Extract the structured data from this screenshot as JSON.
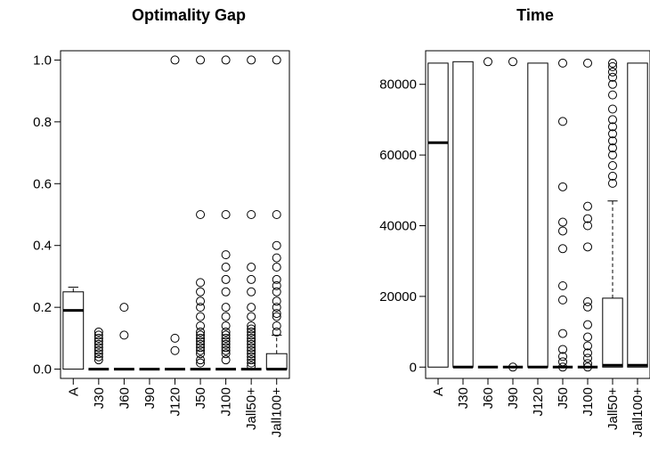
{
  "chart_data": [
    {
      "type": "boxplot",
      "title": "Optimality Gap",
      "xlabel": "",
      "ylabel": "",
      "categories": [
        "A",
        "J30",
        "J60",
        "J90",
        "J120",
        "J50",
        "J100",
        "Jall50+",
        "Jall100+"
      ],
      "ylim": [
        -0.03,
        1.03
      ],
      "yticks": [
        0.0,
        0.2,
        0.4,
        0.6,
        0.8,
        1.0
      ],
      "ytick_labels": [
        "0.0",
        "0.2",
        "0.4",
        "0.6",
        "0.8",
        "1.0"
      ],
      "boxes": [
        {
          "q1": 0,
          "median": 0.19,
          "q3": 0.25,
          "whisker_low": 0,
          "whisker_high": 0.265,
          "outliers": []
        },
        {
          "q1": 0,
          "median": 0,
          "q3": 0,
          "whisker_low": 0,
          "whisker_high": 0,
          "outliers": [
            0.03,
            0.04,
            0.05,
            0.06,
            0.07,
            0.08,
            0.09,
            0.1,
            0.11,
            0.12
          ]
        },
        {
          "q1": 0,
          "median": 0,
          "q3": 0,
          "whisker_low": 0,
          "whisker_high": 0,
          "outliers": [
            0.11,
            0.2
          ]
        },
        {
          "q1": 0,
          "median": 0,
          "q3": 0,
          "whisker_low": 0,
          "whisker_high": 0,
          "outliers": []
        },
        {
          "q1": 0,
          "median": 0,
          "q3": 0,
          "whisker_low": 0,
          "whisker_high": 0,
          "outliers": [
            0.06,
            0.1,
            1.0
          ]
        },
        {
          "q1": 0,
          "median": 0,
          "q3": 0,
          "whisker_low": 0,
          "whisker_high": 0,
          "outliers": [
            0.02,
            0.03,
            0.05,
            0.06,
            0.07,
            0.08,
            0.09,
            0.1,
            0.11,
            0.12,
            0.14,
            0.17,
            0.2,
            0.22,
            0.25,
            0.28,
            0.5,
            1.0
          ]
        },
        {
          "q1": 0,
          "median": 0,
          "q3": 0,
          "whisker_low": 0,
          "whisker_high": 0,
          "outliers": [
            0.03,
            0.05,
            0.06,
            0.07,
            0.08,
            0.09,
            0.1,
            0.11,
            0.12,
            0.14,
            0.17,
            0.2,
            0.25,
            0.29,
            0.33,
            0.37,
            0.5,
            1.0
          ]
        },
        {
          "q1": 0,
          "median": 0,
          "q3": 0,
          "whisker_low": 0,
          "whisker_high": 0,
          "outliers": [
            0.01,
            0.02,
            0.03,
            0.04,
            0.05,
            0.06,
            0.07,
            0.08,
            0.09,
            0.1,
            0.11,
            0.12,
            0.13,
            0.14,
            0.17,
            0.2,
            0.25,
            0.29,
            0.33,
            0.5,
            1.0
          ]
        },
        {
          "q1": 0,
          "median": 0,
          "q3": 0.05,
          "whisker_low": 0,
          "whisker_high": 0.11,
          "outliers": [
            0.12,
            0.14,
            0.17,
            0.18,
            0.2,
            0.22,
            0.25,
            0.27,
            0.29,
            0.33,
            0.36,
            0.4,
            0.5,
            1.0
          ]
        }
      ]
    },
    {
      "type": "boxplot",
      "title": "Time",
      "xlabel": "",
      "ylabel": "",
      "categories": [
        "A",
        "J30",
        "J60",
        "J90",
        "J120",
        "J50",
        "J100",
        "Jall50+",
        "Jall100+"
      ],
      "ylim": [
        -3200,
        89500
      ],
      "yticks": [
        0,
        20000,
        40000,
        60000,
        80000
      ],
      "ytick_labels": [
        "0",
        "20000",
        "40000",
        "60000",
        "80000"
      ],
      "boxes": [
        {
          "q1": 0,
          "median": 63500,
          "q3": 86000,
          "whisker_low": 0,
          "whisker_high": 86000,
          "outliers": []
        },
        {
          "q1": 0,
          "median": 0,
          "q3": 86400,
          "whisker_low": 0,
          "whisker_high": 86400,
          "outliers": []
        },
        {
          "q1": 0,
          "median": 0,
          "q3": 0,
          "whisker_low": 0,
          "whisker_high": 0,
          "outliers": [
            86400
          ]
        },
        {
          "q1": 0,
          "median": 0,
          "q3": 0,
          "whisker_low": 0,
          "whisker_high": 0,
          "outliers": [
            0,
            86400
          ]
        },
        {
          "q1": 0,
          "median": 0,
          "q3": 86000,
          "whisker_low": 0,
          "whisker_high": 86000,
          "outliers": []
        },
        {
          "q1": 0,
          "median": 0,
          "q3": 0,
          "whisker_low": 0,
          "whisker_high": 0,
          "outliers": [
            0,
            1500,
            3000,
            5000,
            9500,
            19000,
            23000,
            33500,
            38500,
            41000,
            51000,
            69500,
            86000
          ]
        },
        {
          "q1": 0,
          "median": 0,
          "q3": 0,
          "whisker_low": 0,
          "whisker_high": 0,
          "outliers": [
            0,
            1000,
            2500,
            4000,
            6000,
            8500,
            12000,
            17000,
            18500,
            34000,
            40000,
            42000,
            45500,
            86000
          ]
        },
        {
          "q1": 0,
          "median": 500,
          "q3": 19500,
          "whisker_low": 0,
          "whisker_high": 47000,
          "outliers": [
            52000,
            54000,
            57000,
            60000,
            62000,
            64000,
            66000,
            68000,
            70000,
            73000,
            77000,
            80000,
            82000,
            83500,
            85000,
            86000
          ]
        },
        {
          "q1": 0,
          "median": 500,
          "q3": 86000,
          "whisker_low": 0,
          "whisker_high": 86000,
          "outliers": []
        }
      ]
    }
  ]
}
